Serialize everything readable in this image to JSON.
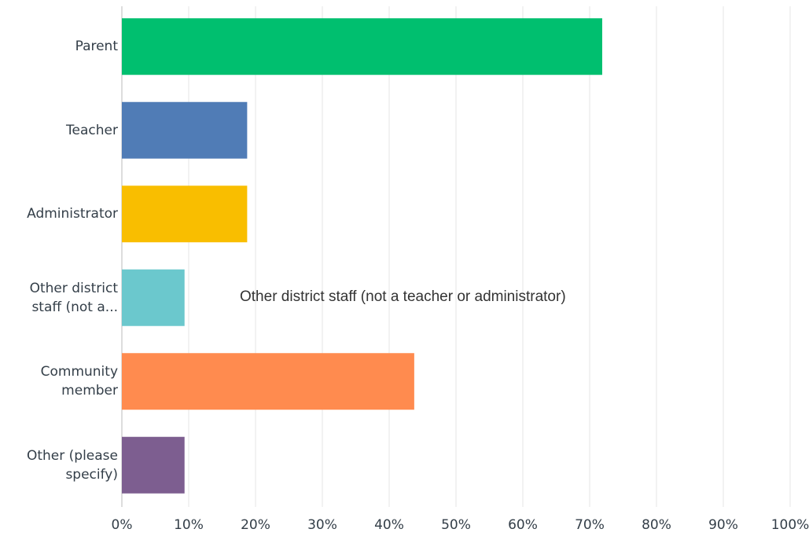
{
  "chart_data": {
    "type": "bar",
    "orientation": "horizontal",
    "categories": [
      "Parent",
      "Teacher",
      "Administrator",
      "Other district staff (not a...",
      "Community member",
      "Other (please specify)"
    ],
    "values": [
      71.88,
      18.75,
      18.75,
      9.38,
      43.75,
      9.38
    ],
    "colors": [
      "#00bf6f",
      "#507cb6",
      "#f9be00",
      "#6bc8cd",
      "#ff8b4f",
      "#7d5e90"
    ],
    "xlim": [
      0,
      100
    ],
    "xticks": [
      {
        "value": 0,
        "label": "0%"
      },
      {
        "value": 10,
        "label": "10%"
      },
      {
        "value": 20,
        "label": "20%"
      },
      {
        "value": 30,
        "label": "30%"
      },
      {
        "value": 40,
        "label": "40%"
      },
      {
        "value": 50,
        "label": "50%"
      },
      {
        "value": 60,
        "label": "60%"
      },
      {
        "value": 70,
        "label": "70%"
      },
      {
        "value": 80,
        "label": "80%"
      },
      {
        "value": 90,
        "label": "90%"
      },
      {
        "value": 100,
        "label": "100%"
      }
    ],
    "grid": true,
    "annotation": "Other district staff (not a teacher or administrator)"
  }
}
